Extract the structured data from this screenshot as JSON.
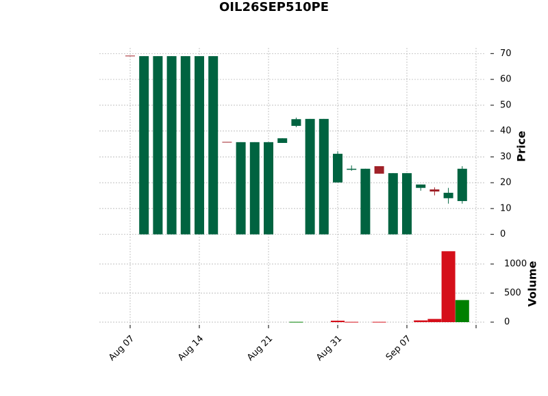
{
  "chart_data": {
    "type": "candlestick",
    "title": "OIL26SEP510PE",
    "categories": [
      "Aug 07",
      null,
      null,
      null,
      null,
      "Aug 14",
      null,
      null,
      null,
      null,
      "Aug 21",
      null,
      null,
      null,
      null,
      "Aug 31",
      null,
      null,
      null,
      null,
      "Sep 07",
      null,
      null,
      null,
      null
    ],
    "open": [
      69.2,
      0,
      0,
      0,
      0,
      0,
      0,
      35.8,
      0,
      0,
      0,
      35.4,
      42,
      0,
      0,
      20.1,
      25,
      0,
      26.4,
      0,
      0,
      18,
      17.4,
      14,
      12.9
    ],
    "high": [
      69.2,
      69,
      69,
      69,
      69,
      69,
      69,
      35.8,
      35.7,
      35.7,
      35.7,
      37.2,
      45.2,
      44.7,
      44.7,
      32.2,
      26.7,
      25.4,
      26.4,
      23.7,
      23.7,
      19.3,
      18.2,
      18,
      26.4
    ],
    "low": [
      69,
      0,
      0,
      0,
      0,
      0,
      0,
      35.6,
      0,
      0,
      0,
      35.4,
      41.5,
      0,
      0,
      20.1,
      24.6,
      0,
      23.5,
      0,
      0,
      16.9,
      15.1,
      11.9,
      11.9
    ],
    "close": [
      69,
      69,
      69,
      69,
      69,
      69,
      69,
      35.6,
      35.7,
      35.7,
      35.7,
      37.2,
      44.6,
      44.7,
      44.7,
      31.2,
      25.4,
      25.4,
      23.5,
      23.7,
      23.7,
      19.3,
      16.6,
      16.1,
      25.4
    ],
    "volume": [
      0,
      0,
      0,
      0,
      0,
      0,
      0,
      0,
      0,
      0,
      0,
      0,
      5,
      0,
      0,
      25,
      5,
      0,
      5,
      0,
      0,
      30,
      55,
      1220,
      380
    ],
    "volume_colors": [
      "#d50f1a",
      "#008000",
      "#008000",
      "#008000",
      "#008000",
      "#008000",
      "#008000",
      "#d50f1a",
      "#008000",
      "#008000",
      "#008000",
      "#008000",
      "#008000",
      "#008000",
      "#008000",
      "#d50f1a",
      "#d50f1a",
      "#008000",
      "#d50f1a",
      "#008000",
      "#008000",
      "#d50f1a",
      "#d50f1a",
      "#d50f1a",
      "#008000"
    ],
    "up_color": "#006340",
    "down_color": "#a02128",
    "ylabel": "Price",
    "ylim": [
      -3,
      72.2
    ],
    "yticks": [
      0,
      10,
      20,
      30,
      40,
      50,
      60,
      70
    ],
    "y2label": "Volume",
    "y2lim": [
      -47,
      1365
    ],
    "y2ticks": [
      0,
      500,
      1000
    ],
    "grid": true
  }
}
